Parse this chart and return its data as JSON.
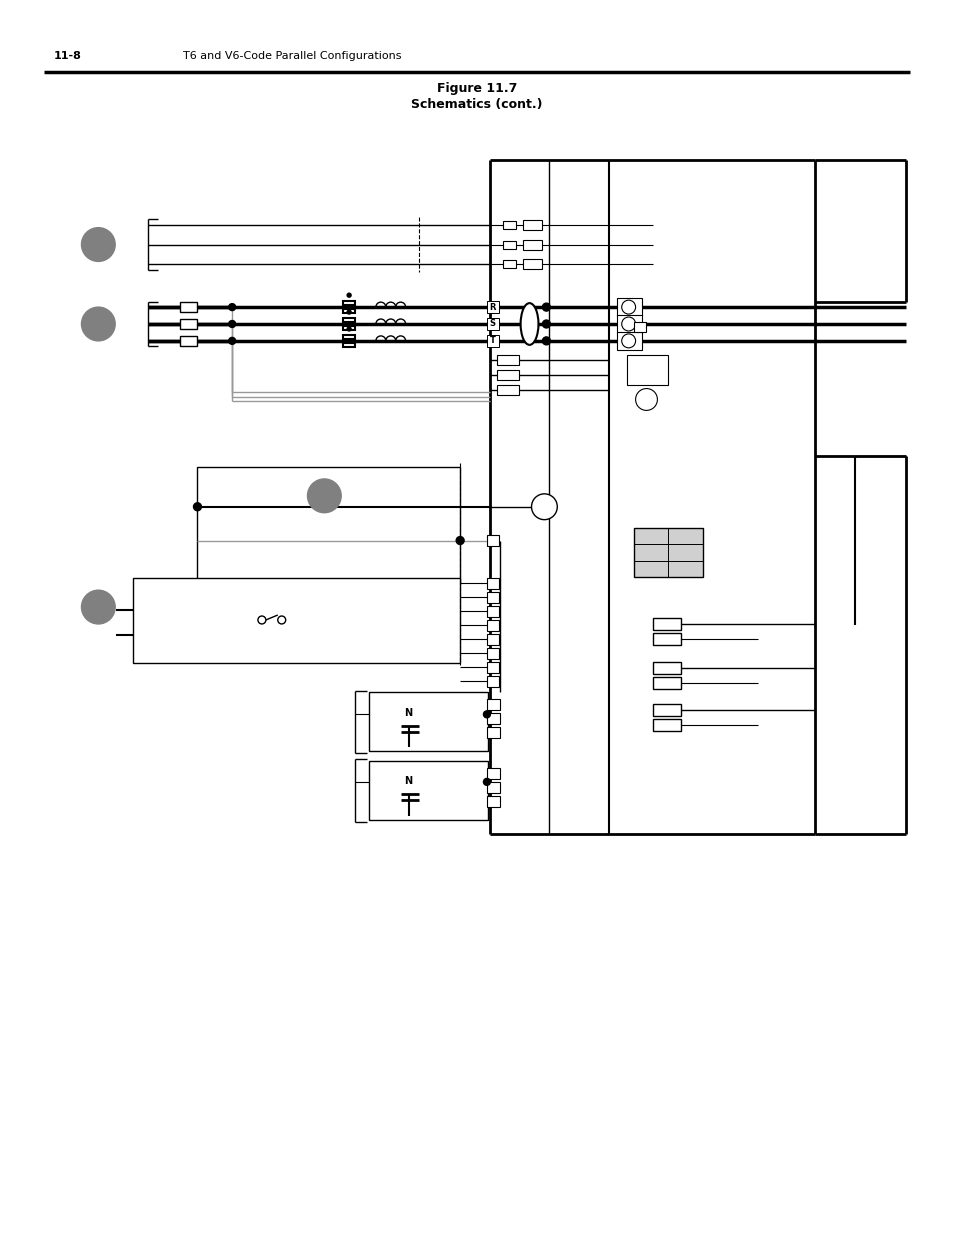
{
  "page_number": "11-8",
  "page_header": "T6 and V6-Code Parallel Configurations",
  "figure_title_line1": "Figure 11.7",
  "figure_title_line2": "Schematics (cont.)",
  "bg_color": "#ffffff",
  "line_color": "#000000",
  "gray_color": "#808080",
  "light_gray": "#999999",
  "fig_width": 9.54,
  "fig_height": 12.35
}
